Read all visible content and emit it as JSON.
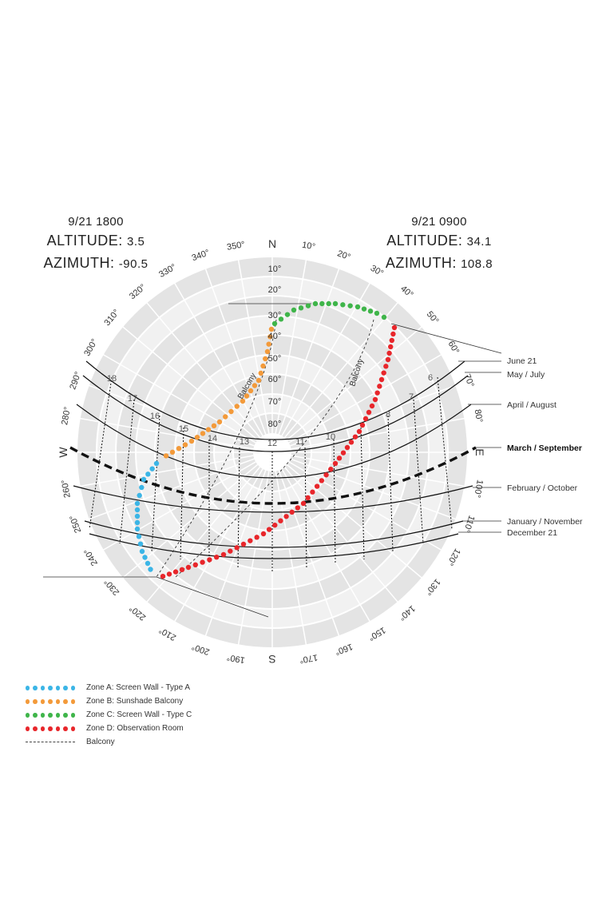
{
  "left_readout": {
    "date": "9/21 1800",
    "altitude_label": "ALTITUDE:",
    "altitude_value": "3.5",
    "azimuth_label": "AZIMUTH:",
    "azimuth_value": "-90.5"
  },
  "right_readout": {
    "date": "9/21 0900",
    "altitude_label": "ALTITUDE:",
    "altitude_value": "34.1",
    "azimuth_label": "AZIMUTH:",
    "azimuth_value": "108.8"
  },
  "compass": {
    "N": "N",
    "E": "E",
    "S": "S",
    "W": "W"
  },
  "azimuth_labels": [
    "10°",
    "20°",
    "30°",
    "40°",
    "50°",
    "60°",
    "70°",
    "80°",
    "100°",
    "110°",
    "120°",
    "130°",
    "140°",
    "150°",
    "160°",
    "170°",
    "190°",
    "200°",
    "210°",
    "220°",
    "230°",
    "240°",
    "250°",
    "260°",
    "280°",
    "290°",
    "300°",
    "310°",
    "320°",
    "330°",
    "340°",
    "350°"
  ],
  "altitude_labels": [
    "10°",
    "20°",
    "30°",
    "40°",
    "50°",
    "60°",
    "70°",
    "80°"
  ],
  "hour_labels": [
    "6",
    "7",
    "8",
    "10",
    "11",
    "12",
    "13",
    "14",
    "15",
    "16",
    "17",
    "18"
  ],
  "month_labels": [
    "June 21",
    "May / July",
    "April / August",
    "March / September",
    "February / October",
    "January / November",
    "December 21"
  ],
  "balcony_labels": [
    "Balcony",
    "Balcony"
  ],
  "legend": [
    {
      "label": "Zone A: Screen Wall - Type A",
      "color": "#3bb5e6"
    },
    {
      "label": "Zone B: Sunshade Balcony",
      "color": "#f39a3a"
    },
    {
      "label": "Zone C: Screen Wall - Type C",
      "color": "#3fb54a"
    },
    {
      "label": "Zone D: Observation Room",
      "color": "#e8262b"
    },
    {
      "label": "Balcony",
      "color": "#444444"
    }
  ]
}
